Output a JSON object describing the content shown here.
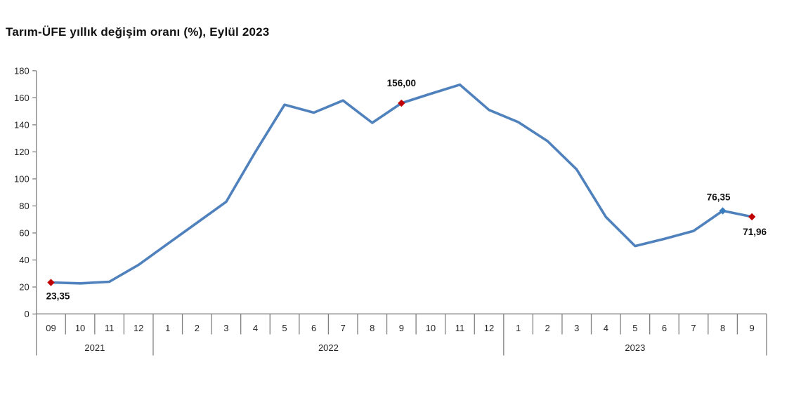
{
  "title": "Tarım-ÜFE yıllık değişim oranı (%), Eylül 2023",
  "chart_data": {
    "type": "line",
    "title": "Tarım-ÜFE yıllık değişim oranı (%), Eylül 2023",
    "series_name": "Tarım-ÜFE yıllık değişim oranı (%)",
    "categories": [
      "09",
      "10",
      "11",
      "12",
      "1",
      "2",
      "3",
      "4",
      "5",
      "6",
      "7",
      "8",
      "9",
      "10",
      "11",
      "12",
      "1",
      "2",
      "3",
      "4",
      "5",
      "6",
      "7",
      "8",
      "9"
    ],
    "year_groups": [
      {
        "label": "2021",
        "count": 4
      },
      {
        "label": "2022",
        "count": 12
      },
      {
        "label": "2023",
        "count": 9
      }
    ],
    "values": [
      23.35,
      22.7,
      23.9,
      36.4,
      52.0,
      67.5,
      83.0,
      120.0,
      154.9,
      149.0,
      158.0,
      141.5,
      156.0,
      163.0,
      169.7,
      151.0,
      142.0,
      128.0,
      107.0,
      71.8,
      50.3,
      55.6,
      61.5,
      76.35,
      71.96
    ],
    "ylim": [
      0,
      180
    ],
    "ytick_step": 20,
    "yticks": [
      0,
      20,
      40,
      60,
      80,
      100,
      120,
      140,
      160,
      180
    ],
    "grid": false,
    "legend": "none",
    "colors": {
      "line": "#4f81bd",
      "marker_red": "#c00000",
      "marker_blue": "#3a7dbf",
      "axis": "#808080",
      "tick_text": "#262626",
      "data_label_text": "#111111"
    },
    "markers": [
      {
        "index": 0,
        "label": "23,35",
        "color": "#c00000",
        "label_pos": "below-left"
      },
      {
        "index": 12,
        "label": "156,00",
        "color": "#c00000",
        "label_pos": "above"
      },
      {
        "index": 23,
        "label": "76,35",
        "color": "#3a7dbf",
        "label_pos": "above-left"
      },
      {
        "index": 24,
        "label": "71,96",
        "color": "#c00000",
        "label_pos": "below-right"
      }
    ]
  }
}
